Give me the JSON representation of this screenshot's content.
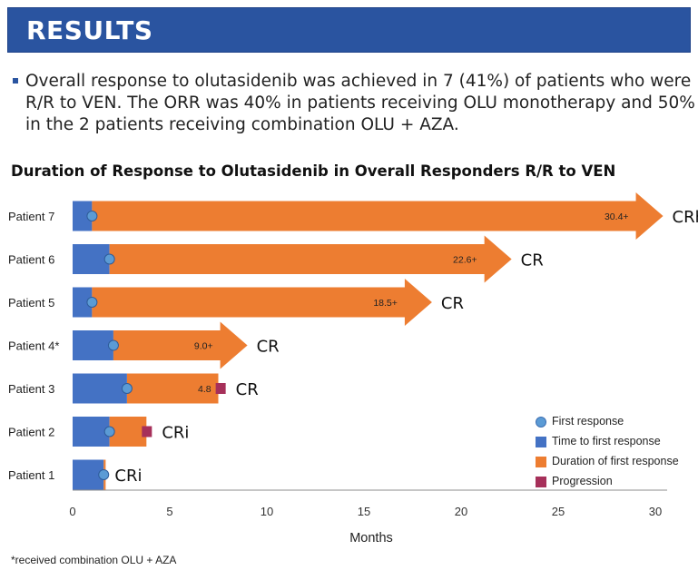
{
  "header": {
    "title": "RESULTS"
  },
  "summary": {
    "text": "Overall response to olutasidenib was achieved in 7 (41%) of patients who were R/R to VEN. The ORR was 40% in patients receiving OLU monotherapy and 50% in the 2 patients receiving combination OLU + AZA."
  },
  "footnote": "*received combination OLU + AZA",
  "colors": {
    "banner": "#2a54a0",
    "time_to_first_response": "#4472c4",
    "duration_of_first_response": "#ed7d31",
    "first_response_marker": "#5b9bd5",
    "progression": "#a6305a"
  },
  "chart_data": {
    "type": "bar",
    "orientation": "horizontal",
    "stacked": true,
    "title": "Duration of Response to Olutasidenib in Overall Responders R/R to VEN",
    "xlabel": "Months",
    "ylabel": "",
    "xlim": [
      0,
      30
    ],
    "xticks": [
      "0",
      "5",
      "10",
      "15",
      "20",
      "25",
      "30"
    ],
    "grid": false,
    "categories": [
      "Patient 7",
      "Patient 6",
      "Patient 5",
      "Patient 4*",
      "Patient 3",
      "Patient 2",
      "Patient 1"
    ],
    "series": [
      {
        "name": "Time to first response",
        "values": [
          1.0,
          1.9,
          1.0,
          2.1,
          2.8,
          1.9,
          1.6
        ]
      },
      {
        "name": "Duration of first response",
        "values": [
          29.4,
          20.7,
          17.5,
          6.9,
          4.7,
          1.9,
          0.1
        ]
      }
    ],
    "first_response": [
      1.0,
      1.9,
      1.0,
      2.1,
      2.8,
      1.9,
      1.6
    ],
    "ongoing": [
      true,
      true,
      true,
      true,
      false,
      false,
      false
    ],
    "progression": [
      null,
      null,
      null,
      null,
      7.6,
      3.8,
      null
    ],
    "duration_labels": [
      "30.4+",
      "22.6+",
      "18.5+",
      "9.0+",
      "4.8",
      "",
      ""
    ],
    "responses": [
      "CRh",
      "CR",
      "CR",
      "CR",
      "CR",
      "CRi",
      "CRi"
    ],
    "legend": {
      "position": "bottom-right",
      "items": [
        "First response",
        "Time to first response",
        "Duration of first response",
        "Progression"
      ]
    }
  }
}
